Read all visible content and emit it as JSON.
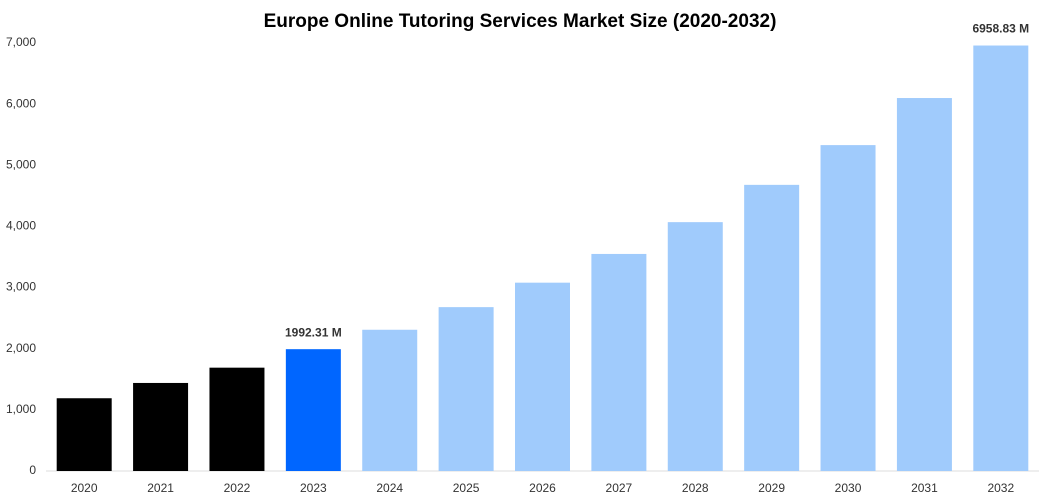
{
  "chart_data": {
    "type": "bar",
    "title": "Europe Online Tutoring Services Market Size (2020-2032)",
    "categories": [
      "2020",
      "2021",
      "2022",
      "2023",
      "2024",
      "2025",
      "2026",
      "2027",
      "2028",
      "2029",
      "2030",
      "2031",
      "2032"
    ],
    "values": [
      1190,
      1440,
      1690,
      1992.31,
      2310,
      2680,
      3080,
      3550,
      4070,
      4680,
      5330,
      6100,
      6958.83
    ],
    "value_labels": [
      null,
      null,
      null,
      "1992.31 M",
      null,
      null,
      null,
      null,
      null,
      null,
      null,
      null,
      "6958.83 M"
    ],
    "colors": [
      "#000000",
      "#000000",
      "#000000",
      "#0066ff",
      "#a0cbfc",
      "#a0cbfc",
      "#a0cbfc",
      "#a0cbfc",
      "#a0cbfc",
      "#a0cbfc",
      "#a0cbfc",
      "#a0cbfc",
      "#a0cbfc"
    ],
    "ylim": [
      0,
      7000
    ],
    "yticks": [
      0,
      {
        "value": 1000,
        "label": "1,000"
      },
      {
        "value": 2000,
        "label": "2,000"
      },
      {
        "value": 3000,
        "label": "3,000"
      },
      {
        "value": 4000,
        "label": "4,000"
      },
      {
        "value": 5000,
        "label": "5,000"
      },
      {
        "value": 6000,
        "label": "6,000"
      },
      {
        "value": 7000,
        "label": "7,000"
      }
    ],
    "grid": false
  }
}
